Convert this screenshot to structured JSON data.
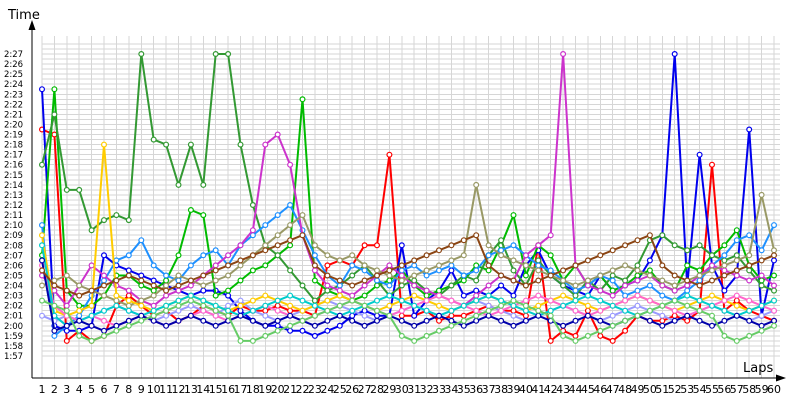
{
  "chart_data": {
    "type": "line",
    "xlabel": "Laps",
    "ylabel": "Time",
    "x_ticks": [
      "1",
      "2",
      "3",
      "4",
      "5",
      "6",
      "7",
      "8",
      "9",
      "10",
      "11",
      "12",
      "13",
      "14",
      "15",
      "16",
      "17",
      "18",
      "19",
      "20",
      "21",
      "22",
      "23",
      "24",
      "25",
      "26",
      "27",
      "28",
      "29",
      "30",
      "31",
      "32",
      "33",
      "34",
      "35",
      "36",
      "37",
      "38",
      "39",
      "40",
      "41",
      "42",
      "43",
      "44",
      "45",
      "46",
      "47",
      "48",
      "49",
      "50",
      "51",
      "52",
      "53",
      "54",
      "55",
      "56",
      "57",
      "58",
      "59",
      "60"
    ],
    "y_ticks": [
      "1:57",
      "1:58",
      "1:59",
      "2:00",
      "2:01",
      "2:02",
      "2:03",
      "2:04",
      "2:05",
      "2:06",
      "2:07",
      "2:08",
      "2:09",
      "2:10",
      "2:11",
      "2:12",
      "2:13",
      "2:14",
      "2:15",
      "2:16",
      "2:17",
      "2:18",
      "2:19",
      "2:20",
      "2:21",
      "2:22",
      "2:23",
      "2:24",
      "2:25",
      "2:26",
      "2:27"
    ],
    "xlim": [
      1,
      60
    ],
    "ylim": [
      117,
      147
    ],
    "grid": true,
    "legend": "none",
    "series": [
      {
        "color": "#ff0000",
        "values": [
          139.5,
          139,
          118.5,
          119.5,
          118.5,
          119,
          122,
          123,
          122,
          121,
          121.5,
          120.5,
          121,
          122,
          121.5,
          121,
          122,
          121.5,
          121.5,
          122,
          121.5,
          121.5,
          121,
          126,
          126.5,
          126,
          128,
          128,
          137,
          121,
          121,
          121.5,
          120.5,
          121,
          121,
          121.5,
          122,
          121.5,
          121.5,
          121,
          128,
          118.5,
          119.5,
          119,
          121.5,
          119,
          118.5,
          119.5,
          121,
          120.5,
          120.5,
          121,
          120.5,
          121.5,
          136,
          121.5,
          122.5,
          121.5,
          121,
          120.5
        ]
      },
      {
        "color": "#0000ee",
        "values": [
          143.5,
          120,
          119.5,
          119.5,
          120,
          127,
          126,
          125.5,
          125,
          124.5,
          124,
          123.5,
          123,
          123.5,
          123.5,
          123,
          121.5,
          120.5,
          120,
          120,
          119.5,
          119.5,
          119,
          119.5,
          120,
          121,
          121.5,
          121,
          121,
          128,
          121,
          122.5,
          123.5,
          125.5,
          123,
          123.5,
          123,
          124,
          123,
          126,
          127.5,
          125,
          124,
          123.5,
          123,
          125,
          123.5,
          124,
          124.5,
          126.5,
          129,
          147,
          124,
          137,
          126,
          123.5,
          125,
          139.5,
          121,
          126.5
        ]
      },
      {
        "color": "#00bb00",
        "values": [
          127,
          143.5,
          123.5,
          122,
          122,
          123,
          125,
          125,
          124,
          123.5,
          124.5,
          127,
          131.5,
          131,
          123,
          123.5,
          124.5,
          125.5,
          126,
          127,
          128,
          142.5,
          124.5,
          123.5,
          123,
          122.5,
          123,
          124,
          124.5,
          125.5,
          124,
          123,
          123.5,
          124,
          124.5,
          126,
          125.5,
          128,
          131,
          125,
          128,
          127,
          124.5,
          126,
          124,
          125,
          123.5,
          124,
          125,
          125.5,
          124,
          123.5,
          126,
          125.5,
          127,
          128,
          129.5,
          126,
          124.5,
          125
        ]
      },
      {
        "color": "#339933",
        "values": [
          136,
          141,
          133.5,
          133.5,
          129.5,
          130.5,
          131,
          130.5,
          147,
          138.5,
          138,
          134,
          138,
          134,
          147,
          147,
          138,
          132,
          128,
          127,
          125.5,
          124,
          122.5,
          123.5,
          124,
          125,
          126,
          124.5,
          123,
          124,
          124.5,
          123.5,
          123,
          124,
          125,
          124.5,
          127,
          128.5,
          125.5,
          124,
          126.5,
          125,
          124,
          123,
          124.5,
          123.5,
          125,
          124.5,
          126,
          128.5,
          129,
          128,
          127.5,
          128,
          127,
          126.5,
          127,
          125.5,
          124,
          123.5
        ]
      },
      {
        "color": "#1e90ff",
        "values": [
          130,
          119,
          120,
          121,
          123,
          124.5,
          126.5,
          127,
          128.5,
          126,
          125,
          124.5,
          126,
          127,
          127.5,
          126,
          128,
          129,
          130,
          131,
          132,
          129.5,
          127,
          125,
          124,
          126,
          125.5,
          124.5,
          124,
          125.5,
          126,
          125,
          125.5,
          126,
          125,
          125.5,
          127,
          127.5,
          128,
          127,
          126,
          125.5,
          124.5,
          123.5,
          124,
          125,
          124.5,
          123,
          123.5,
          124,
          123,
          122.5,
          123.5,
          124.5,
          126,
          127,
          128.5,
          129,
          127.5,
          130
        ]
      },
      {
        "color": "#cc33cc",
        "values": [
          125,
          123.5,
          122,
          124,
          126,
          125,
          124,
          123.5,
          122.5,
          122,
          123,
          123.5,
          124,
          125,
          126,
          127,
          128,
          129.5,
          138,
          139,
          136,
          129,
          125.5,
          124,
          123.5,
          123,
          124,
          125,
          126,
          125,
          124,
          123.5,
          123,
          122.5,
          122,
          123,
          124,
          125,
          124.5,
          127,
          128,
          129,
          147,
          126,
          124,
          123.5,
          123,
          124,
          124.5,
          125,
          124,
          123.5,
          124,
          125,
          126,
          125.5,
          125,
          124.5,
          125,
          124
        ]
      },
      {
        "color": "#9999ff",
        "values": [
          121,
          120.5,
          121,
          120.5,
          121,
          121.5,
          122,
          121.5,
          121,
          120.5,
          121,
          121.5,
          122,
          121.5,
          121,
          122,
          122.5,
          121.5,
          121,
          120.5,
          121,
          121.5,
          122,
          122.5,
          122,
          121.5,
          121,
          120.5,
          121,
          121.5,
          122,
          121.5,
          121,
          121.5,
          122,
          122.5,
          122,
          121.5,
          121,
          120.5,
          121,
          121.5,
          122,
          121.5,
          121,
          120.5,
          121,
          121.5,
          122,
          121.5,
          121,
          120.5,
          121,
          121.5,
          122,
          121.5,
          121,
          120.5,
          121,
          121.5
        ]
      },
      {
        "color": "#999966",
        "values": [
          124,
          124.5,
          125,
          124,
          123.5,
          123,
          122.5,
          122,
          122.5,
          123,
          124,
          125,
          124.5,
          124,
          124.5,
          125,
          126,
          127,
          128,
          129,
          130,
          131,
          128,
          127,
          126.5,
          127,
          126,
          125.5,
          125,
          124.5,
          125,
          125.5,
          126,
          126.5,
          127,
          134,
          128,
          127,
          126.5,
          126,
          125.5,
          125,
          124.5,
          124,
          124.5,
          125,
          125.5,
          126,
          125.5,
          125,
          124.5,
          124,
          124.5,
          125,
          125.5,
          126,
          126.5,
          127,
          133,
          127.5
        ]
      },
      {
        "color": "#ffcc00",
        "values": [
          129,
          121.5,
          121,
          121.5,
          122,
          138,
          123,
          122.5,
          122,
          121.5,
          122,
          122.5,
          123,
          122.5,
          122,
          121.5,
          122,
          122.5,
          123,
          122.5,
          122,
          121.5,
          122,
          122.5,
          123,
          122.5,
          122,
          121.5,
          122,
          122.5,
          123,
          122.5,
          122,
          121.5,
          122,
          122.5,
          123,
          122.5,
          122,
          121.5,
          122,
          122.5,
          123,
          122.5,
          122,
          121.5,
          122,
          122.5,
          123,
          122.5,
          122,
          121.5,
          122,
          122.5,
          123,
          122.5,
          122,
          121.5,
          122,
          122.5
        ]
      },
      {
        "color": "#ff66cc",
        "values": [
          126,
          122,
          121,
          120.5,
          121,
          120.5,
          120,
          120.5,
          121,
          120.5,
          120,
          120.5,
          121,
          121.5,
          121,
          120.5,
          121,
          121.5,
          122,
          121.5,
          121,
          120.5,
          121,
          121.5,
          122,
          122.5,
          122,
          121.5,
          121,
          121.5,
          122,
          122.5,
          123,
          122.5,
          122,
          121.5,
          121,
          121.5,
          122,
          122.5,
          123,
          122.5,
          122,
          121.5,
          121,
          121.5,
          122,
          122.5,
          123,
          122.5,
          122,
          121.5,
          121,
          121.5,
          122,
          122.5,
          123,
          122.5,
          122,
          121.5
        ]
      },
      {
        "color": "#00cccc",
        "values": [
          128,
          121,
          120,
          120.5,
          121,
          121.5,
          122,
          121.5,
          121,
          121.5,
          122,
          122.5,
          123,
          122.5,
          122,
          121.5,
          121,
          121.5,
          122,
          122.5,
          123,
          122.5,
          122,
          121.5,
          121,
          121.5,
          122,
          122.5,
          123,
          122.5,
          122,
          121.5,
          121,
          121.5,
          122,
          122.5,
          123,
          122.5,
          122,
          121.5,
          121,
          121.5,
          122,
          122.5,
          123,
          122.5,
          122,
          121.5,
          121,
          121.5,
          122,
          122.5,
          123,
          122.5,
          122,
          121.5,
          121,
          121.5,
          122,
          122.5
        ]
      },
      {
        "color": "#0000aa",
        "values": [
          126.5,
          119.5,
          120,
          120.5,
          120,
          119.5,
          120,
          120.5,
          121,
          120.5,
          120,
          120.5,
          121,
          120.5,
          120,
          120.5,
          121,
          120.5,
          120,
          120.5,
          121,
          120.5,
          120,
          120.5,
          121,
          120.5,
          120,
          120.5,
          121,
          120.5,
          120,
          120.5,
          121,
          120.5,
          120,
          120.5,
          121,
          120.5,
          120,
          120.5,
          121,
          120.5,
          120,
          120.5,
          121,
          120.5,
          120,
          120.5,
          121,
          120.5,
          120,
          120.5,
          121,
          120.5,
          120,
          120.5,
          121,
          120.5,
          120,
          120.5
        ]
      },
      {
        "color": "#8b4513",
        "values": [
          125.5,
          124,
          123.5,
          123,
          123.5,
          124,
          124.5,
          125,
          124.5,
          124,
          123.5,
          124,
          124.5,
          125,
          125.5,
          126,
          126.5,
          127,
          127.5,
          128,
          128.5,
          129,
          126,
          125,
          124.5,
          124,
          124.5,
          125,
          125.5,
          126,
          126.5,
          127,
          127.5,
          128,
          128.5,
          129,
          126,
          125,
          124.5,
          124,
          124.5,
          125,
          125.5,
          126,
          126.5,
          127,
          127.5,
          128,
          128.5,
          129,
          126,
          125,
          124.5,
          124,
          124.5,
          125,
          125.5,
          126,
          126.5,
          127
        ]
      },
      {
        "color": "#66cc66",
        "values": [
          122.5,
          122,
          121.5,
          119,
          118.5,
          119,
          119.5,
          120,
          120.5,
          121,
          121.5,
          122,
          122.5,
          122,
          121.5,
          121,
          118.5,
          118.5,
          119,
          119.5,
          120,
          120.5,
          121,
          121.5,
          122,
          122.5,
          122,
          121.5,
          121,
          119,
          118.5,
          119,
          119.5,
          120,
          120.5,
          121,
          121.5,
          122,
          122.5,
          122,
          121.5,
          121,
          119,
          118.5,
          119,
          119.5,
          120,
          120.5,
          121,
          121.5,
          122,
          122.5,
          122,
          121.5,
          121,
          119,
          118.5,
          119,
          119.5,
          120
        ]
      }
    ]
  }
}
